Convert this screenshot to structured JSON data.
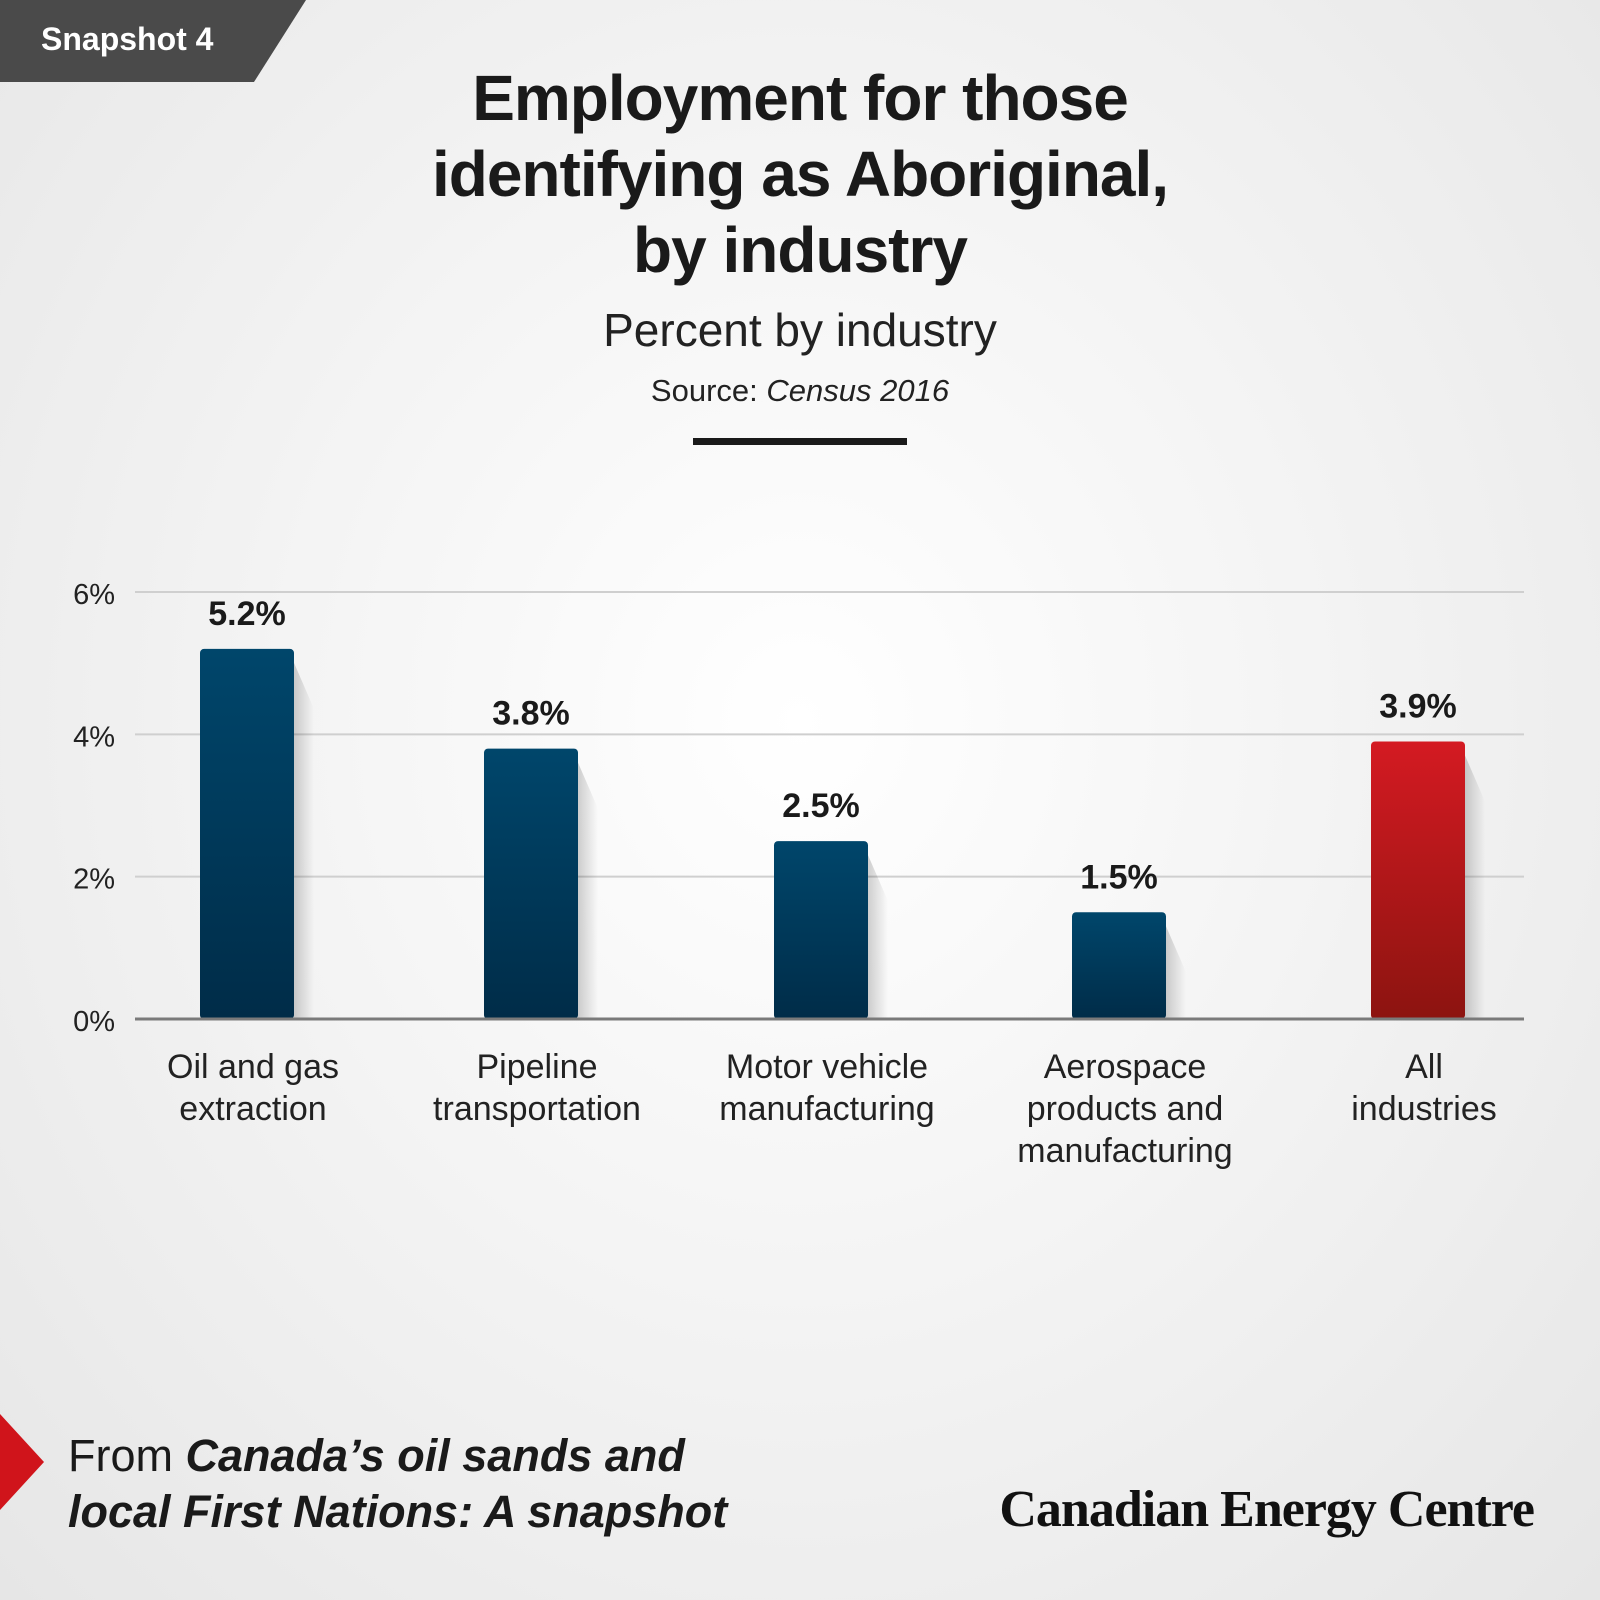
{
  "badge": "Snapshot 4",
  "title_lines": [
    "Employment for those",
    "identifying as Aboriginal,",
    "by industry"
  ],
  "subtitle": "Percent by industry",
  "source_label": "Source:",
  "source_value": "Census 2016",
  "footer": {
    "prefix": "From",
    "book_line1": "Canada’s oil sands and",
    "book_line2": "local First Nations: A snapshot"
  },
  "brand": "Canadian Energy Centre",
  "colors": {
    "bar": "#00466b",
    "bar_dark": "#002c48",
    "highlight": "#d41a22",
    "highlight_dark": "#8c1410",
    "grid": "#cfcfcf",
    "axis": "#7a7a7a",
    "badge_bg": "#4a4a4a",
    "accent_arrow": "#d0141b"
  },
  "chart_data": {
    "type": "bar",
    "categories": [
      [
        "Oil and gas",
        "extraction"
      ],
      [
        "Pipeline",
        "transportation"
      ],
      [
        "Motor vehicle",
        "manufacturing"
      ],
      [
        "Aerospace",
        "products and",
        "manufacturing"
      ],
      [
        "All",
        "industries"
      ]
    ],
    "values": [
      5.2,
      3.8,
      2.5,
      1.5,
      3.9
    ],
    "value_labels": [
      "5.2%",
      "3.8%",
      "2.5%",
      "1.5%",
      "3.9%"
    ],
    "highlight_index": 4,
    "yticks": [
      0,
      2,
      4,
      6
    ],
    "ytick_labels": [
      "0%",
      "2%",
      "4%",
      "6%"
    ],
    "ylim": [
      0,
      6
    ],
    "grid": true,
    "legend": "none"
  }
}
